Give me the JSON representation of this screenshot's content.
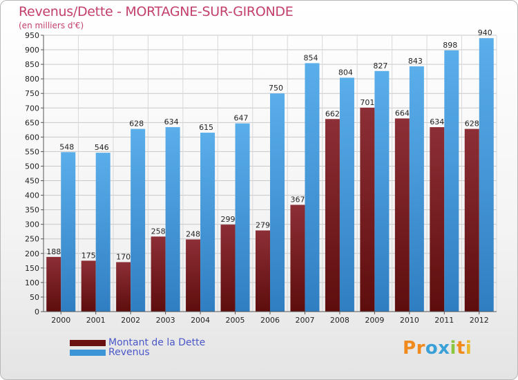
{
  "chart_data": {
    "type": "bar",
    "title": "Revenus/Dette - MORTAGNE-SUR-GIRONDE",
    "subtitle": "(en milliers d'€)",
    "categories": [
      "2000",
      "2001",
      "2002",
      "2003",
      "2004",
      "2005",
      "2006",
      "2007",
      "2008",
      "2009",
      "2010",
      "2011",
      "2012"
    ],
    "series": [
      {
        "name": "Montant de la Dette",
        "color": "#7a1f1f",
        "values": [
          188,
          175,
          170,
          258,
          248,
          299,
          279,
          367,
          662,
          701,
          664,
          634,
          628
        ]
      },
      {
        "name": "Revenus",
        "color": "#3d95d8",
        "values": [
          548,
          546,
          628,
          634,
          615,
          647,
          750,
          854,
          804,
          827,
          843,
          898,
          940
        ]
      }
    ],
    "ylim": [
      0,
      950
    ],
    "yticks": [
      0,
      50,
      100,
      150,
      200,
      250,
      300,
      350,
      400,
      450,
      500,
      550,
      600,
      650,
      700,
      750,
      800,
      850,
      900,
      950
    ],
    "xlabel": "",
    "ylabel": "",
    "grid": true,
    "legend_position": "bottom-left"
  },
  "logo": {
    "text": "Proxiti",
    "letters": [
      "P",
      "r",
      "o",
      "x",
      "i",
      "t",
      "i"
    ],
    "colors": [
      "#f08a1c",
      "#f08a1c",
      "#3aa0d8",
      "#3aa0d8",
      "#8cc63e",
      "#f08a1c",
      "#e9b82b"
    ]
  }
}
